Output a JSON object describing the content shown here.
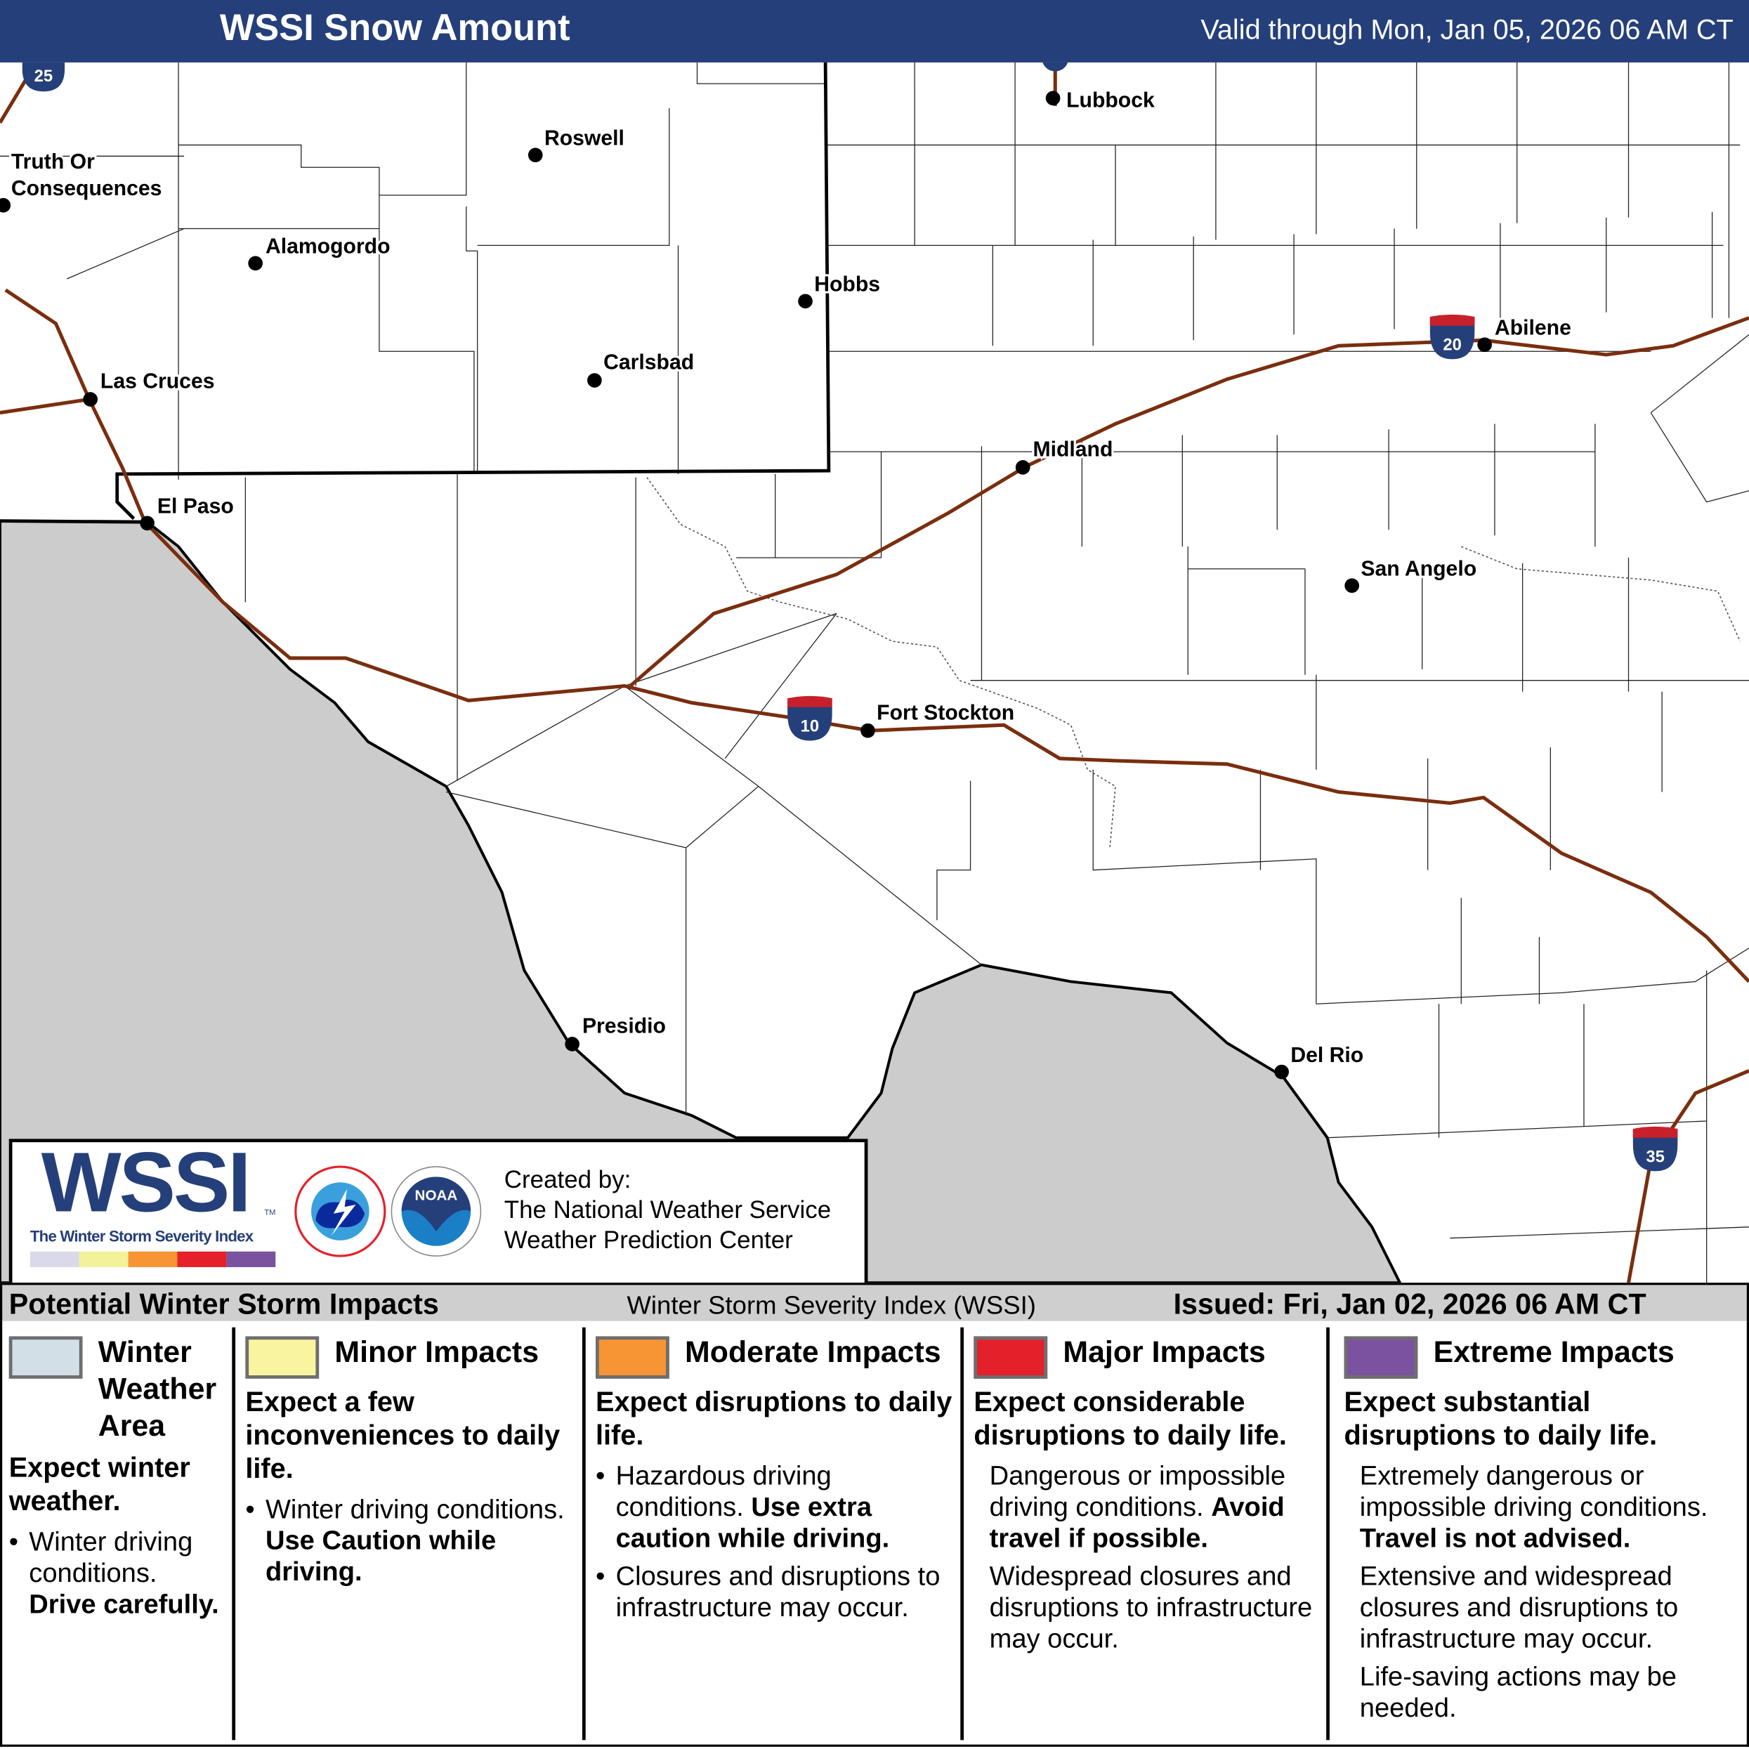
{
  "header": {
    "title": "WSSI Snow Amount",
    "valid": "Valid through Mon, Jan 05, 2026 06 AM CT"
  },
  "map": {
    "colors": {
      "header": "#253f7a",
      "outside_area": "#cccccc",
      "roads": "#7a2e0e",
      "border": "#000000"
    },
    "cities": [
      {
        "name": "Lubbock"
      },
      {
        "name": "Roswell"
      },
      {
        "name": "Truth Or"
      },
      {
        "name": "Consequences"
      },
      {
        "name": "Alamogordo"
      },
      {
        "name": "Hobbs"
      },
      {
        "name": "Abilene"
      },
      {
        "name": "Las Cruces"
      },
      {
        "name": "Carlsbad"
      },
      {
        "name": "Midland"
      },
      {
        "name": "El Paso"
      },
      {
        "name": "San Angelo"
      },
      {
        "name": "Fort Stockton"
      },
      {
        "name": "Presidio"
      },
      {
        "name": "Del Rio"
      }
    ],
    "interstates": [
      {
        "number": "25"
      },
      {
        "number": "20"
      },
      {
        "number": "10"
      },
      {
        "number": "35"
      }
    ]
  },
  "logo": {
    "wssi": "WSSI",
    "tm": "TM",
    "subtitle": "The Winter Storm Severity Index",
    "created_by": "Created by:",
    "org1": "The National Weather Service",
    "org2": "Weather Prediction Center",
    "nws_seal": "NATIONAL WEATHER SERVICE",
    "noaa_seal": "NOAA"
  },
  "strip": {
    "left": "Potential Winter Storm Impacts",
    "center": "Winter Storm Severity Index (WSSI)",
    "right": "Issued: Fri, Jan 02, 2026 06 AM CT"
  },
  "legend": [
    {
      "color": "#d3dfe6",
      "title_lines": [
        "Winter",
        "Weather",
        "Area"
      ],
      "lead": "Expect winter weather.",
      "b1": "Winter driving conditions.",
      "b1b": "Drive carefully."
    },
    {
      "color": "#f8f4a0",
      "title": "Minor Impacts",
      "lead": "Expect a few inconveniences to daily life.",
      "b1": "Winter driving conditions.",
      "b1b": "Use Caution while driving."
    },
    {
      "color": "#f79433",
      "title": "Moderate Impacts",
      "lead": "Expect disruptions to daily life.",
      "b1": "Hazardous driving conditions.",
      "b1b": "Use extra caution while driving.",
      "b2": "Closures and disruptions to infrastructure may occur."
    },
    {
      "color": "#e4202a",
      "title": "Major Impacts",
      "lead": "Expect considerable disruptions to daily life.",
      "b1": "Dangerous or impossible driving conditions.",
      "b1b": "Avoid travel if possible.",
      "b2": "Widespread closures and disruptions to infrastructure may occur."
    },
    {
      "color": "#7a52a0",
      "title": "Extreme Impacts",
      "lead": "Expect substantial disruptions to daily life.",
      "b1": "Extremely dangerous or impossible driving conditions.",
      "b1b": "Travel is not advised.",
      "b2": "Extensive and widespread closures and disruptions to infrastructure may occur.",
      "b3": "Life-saving actions may be needed."
    }
  ]
}
